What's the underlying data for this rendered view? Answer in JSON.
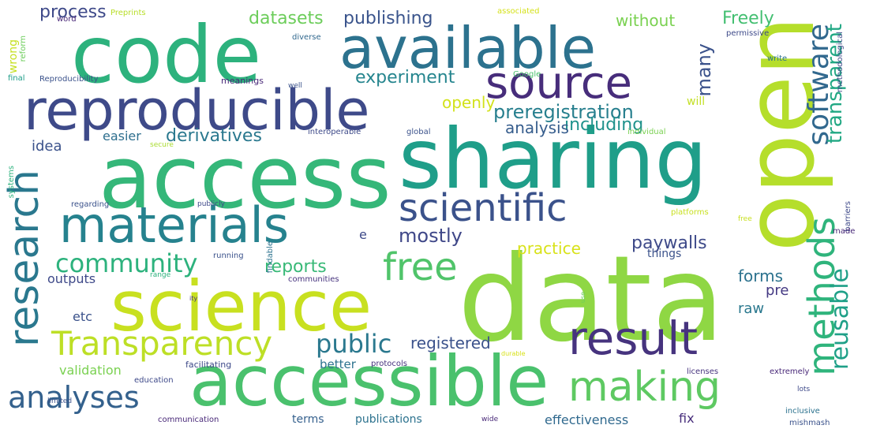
{
  "words": [
    {
      "text": "data",
      "color": "#8fd744"
    },
    {
      "text": "open",
      "color": "#b5de2b"
    },
    {
      "text": "access",
      "color": "#35b779"
    },
    {
      "text": "sharing",
      "color": "#1f9e89"
    },
    {
      "text": "code",
      "color": "#2db27d"
    },
    {
      "text": "accessible",
      "color": "#4ac16d"
    },
    {
      "text": "science",
      "color": "#c8e020"
    },
    {
      "text": "available",
      "color": "#2c728e"
    },
    {
      "text": "reproducible",
      "color": "#3e4a89"
    },
    {
      "text": "source",
      "color": "#472d7b"
    },
    {
      "text": "materials",
      "color": "#26828e"
    },
    {
      "text": "scientific",
      "color": "#3b528b"
    },
    {
      "text": "result",
      "color": "#46337e"
    },
    {
      "text": "research",
      "color": "#2a788e"
    },
    {
      "text": "methods",
      "color": "#2fb47c"
    },
    {
      "text": "making",
      "color": "#5ec962"
    },
    {
      "text": "Transparency",
      "color": "#bddf26"
    },
    {
      "text": "free",
      "color": "#50c46a"
    },
    {
      "text": "software",
      "color": "#31688e"
    },
    {
      "text": "transparent",
      "color": "#22a884"
    },
    {
      "text": "reusable",
      "color": "#1fa088"
    },
    {
      "text": "analyses",
      "color": "#34618d"
    },
    {
      "text": "public",
      "color": "#2a788e"
    },
    {
      "text": "community",
      "color": "#2db27d"
    },
    {
      "text": "mostly",
      "color": "#3f4788"
    },
    {
      "text": "preregistration",
      "color": "#277f8e"
    },
    {
      "text": "experiment",
      "color": "#25858e"
    },
    {
      "text": "datasets",
      "color": "#6ccd5a"
    },
    {
      "text": "publishing",
      "color": "#3a548c"
    },
    {
      "text": "Freely",
      "color": "#43bf71"
    },
    {
      "text": "process",
      "color": "#3e4989"
    },
    {
      "text": "without",
      "color": "#7ad151"
    },
    {
      "text": "many",
      "color": "#3b528b"
    },
    {
      "text": "including",
      "color": "#20928c"
    },
    {
      "text": "derivatives",
      "color": "#29788e"
    },
    {
      "text": "analysis",
      "color": "#365d8d"
    },
    {
      "text": "openly",
      "color": "#d2e21b"
    },
    {
      "text": "reports",
      "color": "#38b977"
    },
    {
      "text": "paywalls",
      "color": "#3e4a89"
    },
    {
      "text": "practice",
      "color": "#d8e219"
    },
    {
      "text": "registered",
      "color": "#3b528b"
    },
    {
      "text": "forms",
      "color": "#2c728e"
    },
    {
      "text": "pre",
      "color": "#443983"
    },
    {
      "text": "raw",
      "color": "#2a788e"
    },
    {
      "text": "idea",
      "color": "#3b528b"
    },
    {
      "text": "easier",
      "color": "#2e6f8e"
    },
    {
      "text": "etc",
      "color": "#3b528b"
    },
    {
      "text": "e",
      "color": "#3e4a89"
    },
    {
      "text": "outputs",
      "color": "#3e4989"
    },
    {
      "text": "validation",
      "color": "#7ad151"
    },
    {
      "text": "better",
      "color": "#2c728e"
    },
    {
      "text": "things",
      "color": "#3b528b"
    },
    {
      "text": "fix",
      "color": "#472d7b"
    },
    {
      "text": "terms",
      "color": "#35608d"
    },
    {
      "text": "publications",
      "color": "#2c728e"
    },
    {
      "text": "effectiveness",
      "color": "#30698e"
    },
    {
      "text": "will",
      "color": "#c2df23"
    },
    {
      "text": "Preprints",
      "color": "#b8de29"
    },
    {
      "text": "associated",
      "color": "#d5e21a"
    },
    {
      "text": "permissive",
      "color": "#3e4a89"
    },
    {
      "text": "wrong",
      "color": "#c5e021"
    },
    {
      "text": "word",
      "color": "#482677"
    },
    {
      "text": "reform",
      "color": "#6ccd5a"
    },
    {
      "text": "diverse",
      "color": "#31688e"
    },
    {
      "text": "final",
      "color": "#1f9e89"
    },
    {
      "text": "Reproducibility",
      "color": "#3b528b"
    },
    {
      "text": "meanings",
      "color": "#482878"
    },
    {
      "text": "Google",
      "color": "#4ac16d"
    },
    {
      "text": "write",
      "color": "#2c728e"
    },
    {
      "text": "methodological",
      "color": "#3e4a89"
    },
    {
      "text": "interoperable",
      "color": "#3e4a89"
    },
    {
      "text": "global",
      "color": "#3b528b"
    },
    {
      "text": "individual",
      "color": "#7ad151"
    },
    {
      "text": "secure",
      "color": "#aadc32"
    },
    {
      "text": "systems",
      "color": "#2db27d"
    },
    {
      "text": "regarding",
      "color": "#3b528b"
    },
    {
      "text": "publicly",
      "color": "#3e4989"
    },
    {
      "text": "platforms",
      "color": "#c8e020"
    },
    {
      "text": "barriers",
      "color": "#3e4989"
    },
    {
      "text": "made",
      "color": "#482878"
    },
    {
      "text": "running",
      "color": "#3b528b"
    },
    {
      "text": "findable",
      "color": "#2c728e"
    },
    {
      "text": "communities",
      "color": "#46337e"
    },
    {
      "text": "range",
      "color": "#2db27d"
    },
    {
      "text": "facilitating",
      "color": "#3e4a89"
    },
    {
      "text": "protocols",
      "color": "#46337e"
    },
    {
      "text": "education",
      "color": "#3e4989"
    },
    {
      "text": "licenses",
      "color": "#46337e"
    },
    {
      "text": "extremely",
      "color": "#482878"
    },
    {
      "text": "limited",
      "color": "#3b528b"
    },
    {
      "text": "communication",
      "color": "#482878"
    },
    {
      "text": "wide",
      "color": "#482878"
    },
    {
      "text": "inclusive",
      "color": "#2c728e"
    },
    {
      "text": "mishmash",
      "color": "#3b528b"
    },
    {
      "text": "lots",
      "color": "#3e4a89"
    },
    {
      "text": "durable",
      "color": "#d8e219"
    },
    {
      "text": "use",
      "color": "#6ccd5a"
    },
    {
      "text": "well",
      "color": "#3b528b"
    },
    {
      "text": "free",
      "color": "#c8e020"
    },
    {
      "text": "ity",
      "color": "#46337e"
    }
  ]
}
